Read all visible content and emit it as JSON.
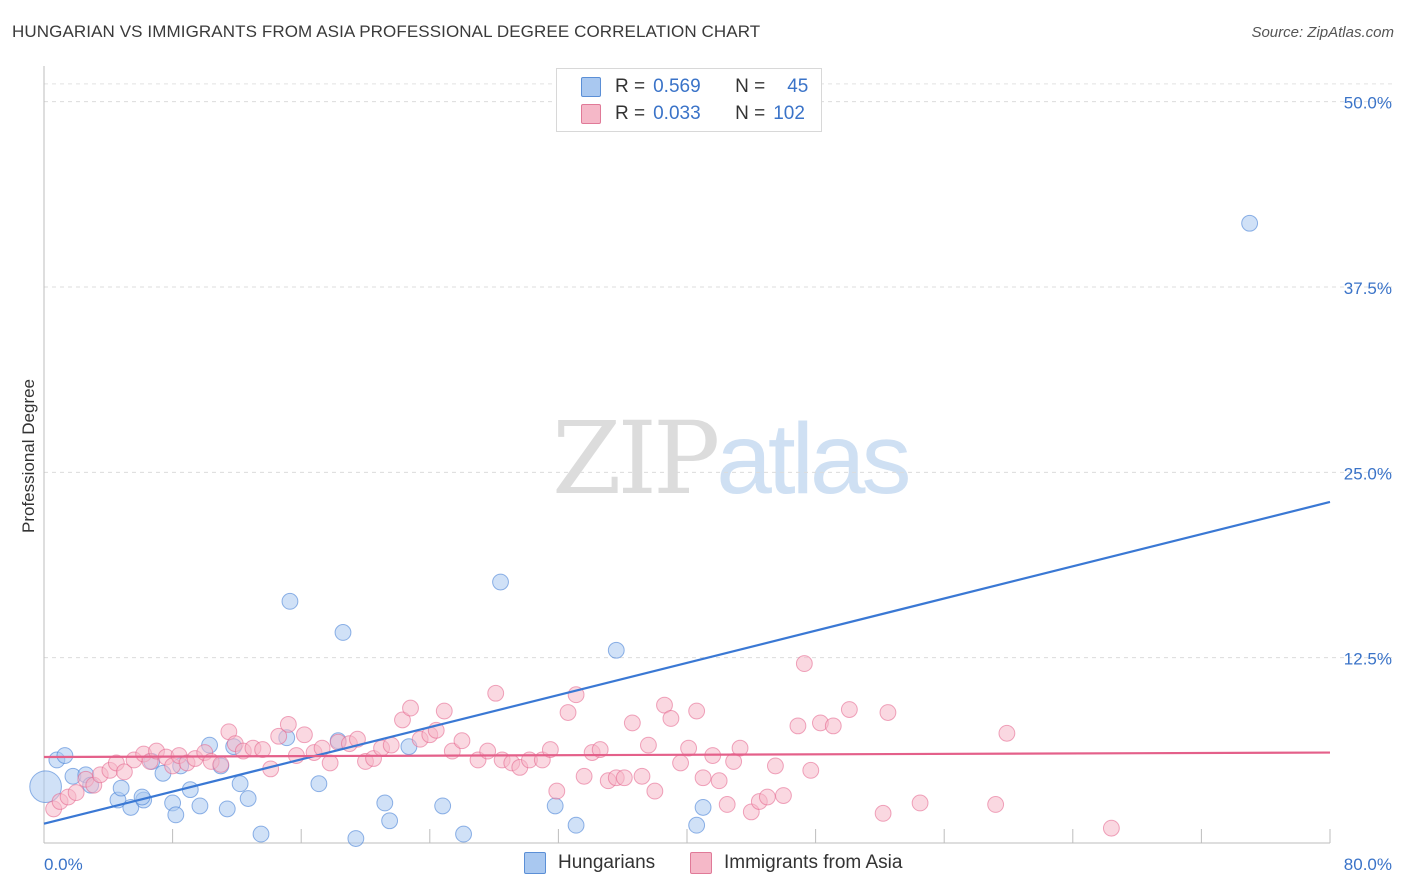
{
  "title": "HUNGARIAN VS IMMIGRANTS FROM ASIA PROFESSIONAL DEGREE CORRELATION CHART",
  "source": "Source: ZipAtlas.com",
  "watermark": {
    "zip": "ZIP",
    "atlas": "atlas"
  },
  "legend_top": {
    "rows": [
      {
        "r_label": "R =",
        "r_value": "0.569",
        "n_label": "N =",
        "n_value": "45",
        "color": "#a9c8f0"
      },
      {
        "r_label": "R =",
        "r_value": "0.033",
        "n_label": "N =",
        "n_value": "102",
        "color": "#f5b8c8"
      }
    ]
  },
  "legend_bottom": [
    {
      "label": "Hungarians",
      "color": "#a9c8f0"
    },
    {
      "label": "Immigrants from Asia",
      "color": "#f5b8c8"
    }
  ],
  "chart_data": {
    "type": "scatter",
    "title": "HUNGARIAN VS IMMIGRANTS FROM ASIA PROFESSIONAL DEGREE CORRELATION CHART",
    "ylabel": "Professional Degree",
    "xlabel": "",
    "xlim": [
      0,
      80
    ],
    "ylim": [
      0,
      52
    ],
    "x_tick_labels": [
      "0.0%",
      "80.0%"
    ],
    "y_ticks": [
      12.5,
      25.0,
      37.5,
      50.0
    ],
    "y_tick_labels": [
      "12.5%",
      "25.0%",
      "37.5%",
      "50.0%"
    ],
    "grid": true,
    "legend_placement": "top-center",
    "series": [
      {
        "name": "Hungarians",
        "color": "#3a78d4",
        "fill": "#a9c8f0",
        "trend": {
          "x": [
            0,
            80
          ],
          "y": [
            1.3,
            23.0
          ]
        },
        "points": [
          [
            0.1,
            3.8,
            22
          ],
          [
            0.8,
            5.6,
            11
          ],
          [
            1.3,
            5.9,
            11
          ],
          [
            1.8,
            4.5,
            11
          ],
          [
            2.6,
            4.6,
            11
          ],
          [
            2.9,
            3.9,
            11
          ],
          [
            4.6,
            2.9,
            11
          ],
          [
            4.8,
            3.7,
            11
          ],
          [
            5.4,
            2.4,
            11
          ],
          [
            6.2,
            2.9,
            11
          ],
          [
            6.1,
            3.1,
            11
          ],
          [
            6.7,
            5.5,
            11
          ],
          [
            7.4,
            4.7,
            11
          ],
          [
            8.0,
            2.7,
            11
          ],
          [
            8.2,
            1.9,
            11
          ],
          [
            8.5,
            5.2,
            11
          ],
          [
            9.1,
            3.6,
            11
          ],
          [
            9.7,
            2.5,
            11
          ],
          [
            10.3,
            6.6,
            11
          ],
          [
            11.0,
            5.2,
            11
          ],
          [
            11.4,
            2.3,
            11
          ],
          [
            11.8,
            6.5,
            11
          ],
          [
            12.2,
            4.0,
            11
          ],
          [
            12.7,
            3.0,
            11
          ],
          [
            13.5,
            0.6,
            11
          ],
          [
            15.1,
            7.1,
            11
          ],
          [
            15.3,
            16.3,
            11
          ],
          [
            17.1,
            4.0,
            11
          ],
          [
            18.3,
            6.9,
            11
          ],
          [
            18.6,
            14.2,
            11
          ],
          [
            19.4,
            0.3,
            11
          ],
          [
            21.2,
            2.7,
            11
          ],
          [
            21.5,
            1.5,
            11
          ],
          [
            22.7,
            6.5,
            11
          ],
          [
            24.8,
            2.5,
            11
          ],
          [
            26.1,
            0.6,
            11
          ],
          [
            28.4,
            17.6,
            11
          ],
          [
            31.8,
            2.5,
            11
          ],
          [
            33.1,
            1.2,
            11
          ],
          [
            35.6,
            13.0,
            11
          ],
          [
            40.6,
            1.2,
            11
          ],
          [
            41.0,
            2.4,
            11
          ],
          [
            75.0,
            41.8,
            11
          ]
        ]
      },
      {
        "name": "Immigrants from Asia",
        "color": "#e4608a",
        "fill": "#f5b8c8",
        "trend": {
          "x": [
            0,
            80
          ],
          "y": [
            5.8,
            6.1
          ]
        },
        "points": [
          [
            0.6,
            2.3,
            11
          ],
          [
            1.0,
            2.8,
            11
          ],
          [
            1.5,
            3.1,
            11
          ],
          [
            2.0,
            3.4,
            11
          ],
          [
            2.6,
            4.3,
            11
          ],
          [
            3.1,
            3.9,
            11
          ],
          [
            3.5,
            4.6,
            11
          ],
          [
            4.1,
            4.9,
            11
          ],
          [
            4.5,
            5.4,
            11
          ],
          [
            5.0,
            4.8,
            11
          ],
          [
            5.6,
            5.6,
            11
          ],
          [
            6.2,
            6.0,
            11
          ],
          [
            6.6,
            5.5,
            11
          ],
          [
            7.0,
            6.2,
            11
          ],
          [
            7.6,
            5.8,
            11
          ],
          [
            8.0,
            5.2,
            11
          ],
          [
            8.4,
            5.9,
            11
          ],
          [
            8.9,
            5.4,
            11
          ],
          [
            9.4,
            5.7,
            11
          ],
          [
            10.0,
            6.1,
            11
          ],
          [
            10.4,
            5.5,
            11
          ],
          [
            11.0,
            5.3,
            11
          ],
          [
            11.5,
            7.5,
            11
          ],
          [
            11.9,
            6.7,
            11
          ],
          [
            12.4,
            6.2,
            11
          ],
          [
            13.0,
            6.4,
            11
          ],
          [
            13.6,
            6.3,
            11
          ],
          [
            14.1,
            5.0,
            11
          ],
          [
            14.6,
            7.2,
            11
          ],
          [
            15.2,
            8.0,
            11
          ],
          [
            15.7,
            5.9,
            11
          ],
          [
            16.2,
            7.3,
            11
          ],
          [
            16.8,
            6.1,
            11
          ],
          [
            17.3,
            6.4,
            11
          ],
          [
            17.8,
            5.4,
            11
          ],
          [
            18.3,
            6.8,
            11
          ],
          [
            19.0,
            6.7,
            11
          ],
          [
            19.5,
            7.0,
            11
          ],
          [
            20.0,
            5.5,
            11
          ],
          [
            20.5,
            5.7,
            11
          ],
          [
            21.0,
            6.4,
            11
          ],
          [
            21.6,
            6.6,
            11
          ],
          [
            22.3,
            8.3,
            11
          ],
          [
            22.8,
            9.1,
            11
          ],
          [
            23.4,
            7.0,
            11
          ],
          [
            24.0,
            7.3,
            11
          ],
          [
            24.4,
            7.6,
            11
          ],
          [
            24.9,
            8.9,
            11
          ],
          [
            25.4,
            6.2,
            11
          ],
          [
            26.0,
            6.9,
            11
          ],
          [
            27.0,
            5.6,
            11
          ],
          [
            27.6,
            6.2,
            11
          ],
          [
            28.1,
            10.1,
            11
          ],
          [
            28.5,
            5.6,
            11
          ],
          [
            29.1,
            5.4,
            11
          ],
          [
            29.6,
            5.1,
            11
          ],
          [
            30.2,
            5.6,
            11
          ],
          [
            31.0,
            5.6,
            11
          ],
          [
            31.5,
            6.3,
            11
          ],
          [
            31.9,
            3.5,
            11
          ],
          [
            32.6,
            8.8,
            11
          ],
          [
            33.1,
            10.0,
            11
          ],
          [
            33.6,
            4.5,
            11
          ],
          [
            34.1,
            6.1,
            11
          ],
          [
            34.6,
            6.3,
            11
          ],
          [
            35.1,
            4.2,
            11
          ],
          [
            35.6,
            4.4,
            11
          ],
          [
            36.1,
            4.4,
            11
          ],
          [
            36.6,
            8.1,
            11
          ],
          [
            37.2,
            4.5,
            11
          ],
          [
            37.6,
            6.6,
            11
          ],
          [
            38.0,
            3.5,
            11
          ],
          [
            38.6,
            9.3,
            11
          ],
          [
            39.0,
            8.4,
            11
          ],
          [
            39.6,
            5.4,
            11
          ],
          [
            40.1,
            6.4,
            11
          ],
          [
            40.6,
            8.9,
            11
          ],
          [
            41.0,
            4.4,
            11
          ],
          [
            41.6,
            5.9,
            11
          ],
          [
            42.0,
            4.2,
            11
          ],
          [
            42.5,
            2.6,
            11
          ],
          [
            42.9,
            5.5,
            11
          ],
          [
            43.3,
            6.4,
            11
          ],
          [
            44.0,
            2.1,
            11
          ],
          [
            44.5,
            2.8,
            11
          ],
          [
            45.0,
            3.1,
            11
          ],
          [
            45.5,
            5.2,
            11
          ],
          [
            46.0,
            3.2,
            11
          ],
          [
            46.9,
            7.9,
            11
          ],
          [
            47.3,
            12.1,
            11
          ],
          [
            47.7,
            4.9,
            11
          ],
          [
            48.3,
            8.1,
            11
          ],
          [
            49.1,
            7.9,
            11
          ],
          [
            50.1,
            9.0,
            11
          ],
          [
            52.2,
            2.0,
            11
          ],
          [
            52.5,
            8.8,
            11
          ],
          [
            54.5,
            2.7,
            11
          ],
          [
            59.2,
            2.6,
            11
          ],
          [
            59.9,
            7.4,
            11
          ],
          [
            66.4,
            1.0,
            11
          ]
        ]
      }
    ]
  }
}
